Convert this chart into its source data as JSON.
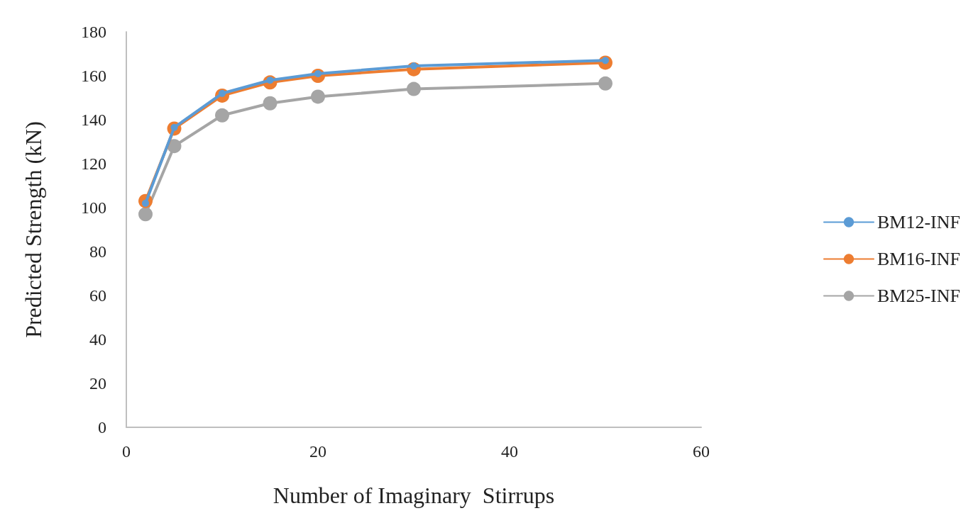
{
  "chart_data": {
    "type": "line",
    "xlabel": "Number of Imaginary  Stirrups",
    "ylabel": "Predicted Strength (kN)",
    "x": [
      2,
      5,
      10,
      15,
      20,
      30,
      50
    ],
    "series": [
      {
        "name": "BM12-INF",
        "color": "#5b9bd5",
        "values": [
          102,
          136.5,
          152,
          158,
          161,
          164.5,
          167
        ]
      },
      {
        "name": "BM16-INF",
        "color": "#ed7d31",
        "values": [
          103,
          136,
          151,
          157,
          160,
          163,
          166
        ]
      },
      {
        "name": "BM25-INF",
        "color": "#a5a5a5",
        "values": [
          97,
          128,
          142,
          147.5,
          150.5,
          154,
          156.5
        ]
      }
    ],
    "xlim": [
      0,
      60
    ],
    "xticks": [
      0,
      20,
      40,
      60
    ],
    "ylim": [
      0,
      180
    ],
    "yticks": [
      0,
      20,
      40,
      60,
      80,
      100,
      120,
      140,
      160,
      180
    ],
    "grid": false,
    "legend": "right",
    "marker": "circle",
    "line_style": "solid"
  }
}
